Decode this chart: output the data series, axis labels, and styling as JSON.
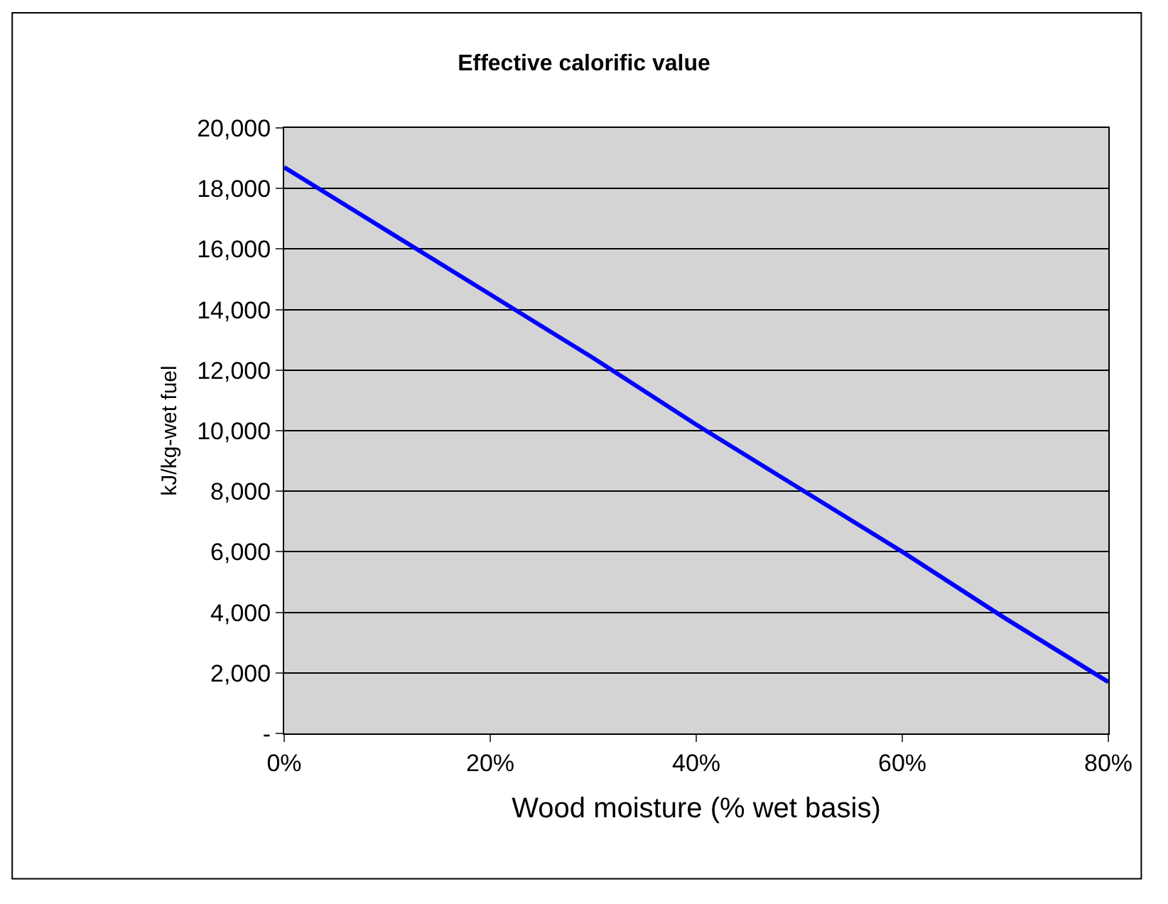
{
  "chart_data": {
    "type": "line",
    "title": "Effective calorific value",
    "xlabel": "Wood moisture (% wet basis)",
    "ylabel": "kJ/kg-wet fuel",
    "x": [
      0,
      10,
      20,
      30,
      40,
      50,
      60,
      70,
      80
    ],
    "series": [
      {
        "color": "#0000ff",
        "values": [
          18700,
          16600,
          14500,
          12400,
          10200,
          8100,
          6000,
          3800,
          1700
        ]
      }
    ],
    "xlim": [
      0,
      80
    ],
    "ylim": [
      0,
      20000
    ],
    "xticks": [
      {
        "value": 0,
        "label": "0%"
      },
      {
        "value": 20,
        "label": "20%"
      },
      {
        "value": 40,
        "label": "40%"
      },
      {
        "value": 60,
        "label": "60%"
      },
      {
        "value": 80,
        "label": "80%"
      }
    ],
    "yticks": [
      {
        "value": 0,
        "label": "-"
      },
      {
        "value": 2000,
        "label": "2,000"
      },
      {
        "value": 4000,
        "label": "4,000"
      },
      {
        "value": 6000,
        "label": "6,000"
      },
      {
        "value": 8000,
        "label": "8,000"
      },
      {
        "value": 10000,
        "label": "10,000"
      },
      {
        "value": 12000,
        "label": "12,000"
      },
      {
        "value": 14000,
        "label": "14,000"
      },
      {
        "value": 16000,
        "label": "16,000"
      },
      {
        "value": 18000,
        "label": "18,000"
      },
      {
        "value": 20000,
        "label": "20,000"
      }
    ],
    "grid": "y",
    "marker": "none",
    "line_style": "solid"
  }
}
